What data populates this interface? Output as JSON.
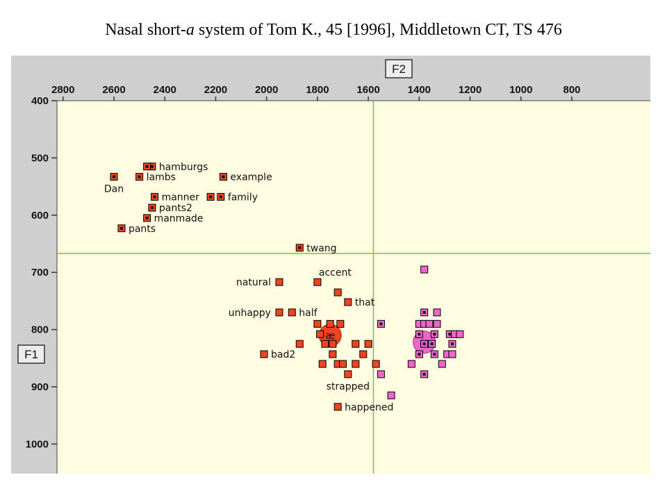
{
  "title": {
    "prefix": "Nasal short-",
    "italic": "a",
    "suffix": " system of Tom K., 45 [1996], Middletown CT, TS 476"
  },
  "colors": {
    "panel": "#cfcfcf",
    "plot_bg": "#fdfbe0",
    "guide": "#66cc44",
    "red": "#ee4422",
    "pink": "#ee66cc",
    "nasal_center": "#111111"
  },
  "chart_data": {
    "type": "scatter",
    "x_axis": {
      "label": "F2",
      "range": [
        2800,
        700
      ],
      "reversed": true,
      "ticks": [
        2800,
        2600,
        2400,
        2200,
        2000,
        1800,
        1600,
        1400,
        1200,
        1000,
        800
      ]
    },
    "y_axis": {
      "label": "F1",
      "range": [
        400,
        1050
      ],
      "reversed": true,
      "ticks": [
        400,
        500,
        600,
        700,
        800,
        900,
        1000
      ]
    },
    "guides": {
      "f2": 1580,
      "f1": 667
    },
    "mean_symbol": "æ",
    "means": [
      {
        "f2": 1750,
        "f1": 810,
        "color": "red"
      },
      {
        "f2": 1380,
        "f1": 822,
        "color": "pink"
      }
    ],
    "labeled_tokens": [
      {
        "label": "hamburgs",
        "f2": 2450,
        "f1": 515,
        "nasal": true,
        "label_side": "right"
      },
      {
        "label": "",
        "f2": 2470,
        "f1": 515,
        "nasal": true
      },
      {
        "label": "lambs",
        "f2": 2500,
        "f1": 533,
        "nasal": true,
        "label_side": "right"
      },
      {
        "label": "Dan",
        "f2": 2600,
        "f1": 533,
        "nasal": true,
        "label_side": "below"
      },
      {
        "label": "example",
        "f2": 2170,
        "f1": 533,
        "nasal": true,
        "label_side": "right"
      },
      {
        "label": "manner",
        "f2": 2440,
        "f1": 568,
        "nasal": true,
        "label_side": "right"
      },
      {
        "label": "family",
        "f2": 2180,
        "f1": 568,
        "nasal": true,
        "label_side": "right"
      },
      {
        "label": "",
        "f2": 2220,
        "f1": 568,
        "nasal": true
      },
      {
        "label": "pants2",
        "f2": 2450,
        "f1": 587,
        "nasal": true,
        "label_side": "right"
      },
      {
        "label": "manmade",
        "f2": 2470,
        "f1": 605,
        "nasal": true,
        "label_side": "right"
      },
      {
        "label": "pants",
        "f2": 2570,
        "f1": 623,
        "nasal": true,
        "label_side": "right"
      },
      {
        "label": "twang",
        "f2": 1870,
        "f1": 657,
        "nasal": true,
        "label_side": "right"
      },
      {
        "label": "natural",
        "f2": 1950,
        "f1": 717,
        "nasal": false,
        "label_side": "left"
      },
      {
        "label": "accent",
        "f2": 1800,
        "f1": 717,
        "nasal": false,
        "label_side": "above"
      },
      {
        "label": "unhappy",
        "f2": 1950,
        "f1": 770,
        "nasal": false,
        "label_side": "left"
      },
      {
        "label": "half",
        "f2": 1900,
        "f1": 770,
        "nasal": false,
        "label_side": "right"
      },
      {
        "label": "that",
        "f2": 1680,
        "f1": 752,
        "nasal": false,
        "label_side": "right"
      },
      {
        "label": "bad2",
        "f2": 2010,
        "f1": 843,
        "nasal": false,
        "label_side": "right"
      },
      {
        "label": "strapped",
        "f2": 1680,
        "f1": 878,
        "nasal": false,
        "label_side": "below"
      },
      {
        "label": "happened",
        "f2": 1720,
        "f1": 935,
        "nasal": false,
        "label_side": "right"
      }
    ],
    "red_tokens": [
      {
        "f2": 1720,
        "f1": 735
      },
      {
        "f2": 1800,
        "f1": 790
      },
      {
        "f2": 1750,
        "f1": 790
      },
      {
        "f2": 1710,
        "f1": 790
      },
      {
        "f2": 1790,
        "f1": 808
      },
      {
        "f2": 1770,
        "f1": 825
      },
      {
        "f2": 1740,
        "f1": 825
      },
      {
        "f2": 1870,
        "f1": 825
      },
      {
        "f2": 1650,
        "f1": 825
      },
      {
        "f2": 1600,
        "f1": 825
      },
      {
        "f2": 1740,
        "f1": 843
      },
      {
        "f2": 1620,
        "f1": 843
      },
      {
        "f2": 1780,
        "f1": 860
      },
      {
        "f2": 1720,
        "f1": 860
      },
      {
        "f2": 1700,
        "f1": 860
      },
      {
        "f2": 1650,
        "f1": 860
      },
      {
        "f2": 1570,
        "f1": 860
      }
    ],
    "pink_tokens": [
      {
        "f2": 1380,
        "f1": 695,
        "nasal": false
      },
      {
        "f2": 1380,
        "f1": 770,
        "nasal": true
      },
      {
        "f2": 1330,
        "f1": 770,
        "nasal": false
      },
      {
        "f2": 1550,
        "f1": 790,
        "nasal": true
      },
      {
        "f2": 1400,
        "f1": 790,
        "nasal": false
      },
      {
        "f2": 1380,
        "f1": 790,
        "nasal": false
      },
      {
        "f2": 1360,
        "f1": 790,
        "nasal": false
      },
      {
        "f2": 1330,
        "f1": 790,
        "nasal": false
      },
      {
        "f2": 1400,
        "f1": 808,
        "nasal": true
      },
      {
        "f2": 1340,
        "f1": 808,
        "nasal": true
      },
      {
        "f2": 1280,
        "f1": 808,
        "nasal": true
      },
      {
        "f2": 1260,
        "f1": 808,
        "nasal": false
      },
      {
        "f2": 1240,
        "f1": 808,
        "nasal": false
      },
      {
        "f2": 1380,
        "f1": 825,
        "nasal": true
      },
      {
        "f2": 1350,
        "f1": 825,
        "nasal": true
      },
      {
        "f2": 1270,
        "f1": 825,
        "nasal": true
      },
      {
        "f2": 1400,
        "f1": 843,
        "nasal": true
      },
      {
        "f2": 1340,
        "f1": 843,
        "nasal": true
      },
      {
        "f2": 1290,
        "f1": 843,
        "nasal": false
      },
      {
        "f2": 1270,
        "f1": 843,
        "nasal": false
      },
      {
        "f2": 1430,
        "f1": 860,
        "nasal": false
      },
      {
        "f2": 1310,
        "f1": 860,
        "nasal": false
      },
      {
        "f2": 1380,
        "f1": 878,
        "nasal": true
      },
      {
        "f2": 1550,
        "f1": 878,
        "nasal": false
      },
      {
        "f2": 1510,
        "f1": 915,
        "nasal": false
      }
    ]
  }
}
